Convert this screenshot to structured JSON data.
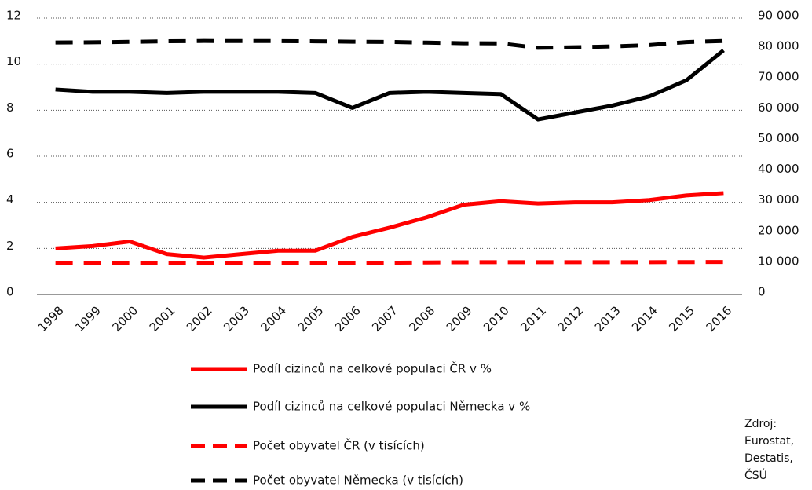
{
  "chart_data": {
    "type": "line",
    "categories": [
      "1998",
      "1999",
      "2000",
      "2001",
      "2002",
      "2003",
      "2004",
      "2005",
      "2006",
      "2007",
      "2008",
      "2009",
      "2010",
      "2011",
      "2012",
      "2013",
      "2014",
      "2015",
      "2016"
    ],
    "ylim": [
      0,
      12
    ],
    "yticks": [
      0,
      2,
      4,
      6,
      8,
      10,
      12
    ],
    "y2lim": [
      0,
      90000
    ],
    "y2ticks": [
      0,
      {
        "value": 10000,
        "label": "10 000"
      },
      {
        "value": 20000,
        "label": "20 000"
      },
      {
        "value": 30000,
        "label": "30 000"
      },
      {
        "value": 40000,
        "label": "40 000"
      },
      {
        "value": 50000,
        "label": "50 000"
      },
      {
        "value": 60000,
        "label": "60 000"
      },
      {
        "value": 70000,
        "label": "70 000"
      },
      {
        "value": 80000,
        "label": "80 000"
      },
      {
        "value": 90000,
        "label": "90 000"
      }
    ],
    "grid": true,
    "series": [
      {
        "name": "Podíl cizinců na celkové populaci ČR v %",
        "color": "#ff0000",
        "dashed": false,
        "values": [
          2.0,
          2.1,
          2.3,
          1.75,
          1.6,
          1.75,
          1.9,
          1.9,
          2.5,
          2.9,
          3.35,
          3.9,
          4.05,
          3.95,
          4.0,
          4.0,
          4.1,
          4.3,
          4.4
        ]
      },
      {
        "name": "Podíl cizinců na celkové populaci Německa v %",
        "color": "#000000",
        "dashed": false,
        "values": [
          8.9,
          8.8,
          8.8,
          8.75,
          8.8,
          8.8,
          8.8,
          8.75,
          8.1,
          8.75,
          8.8,
          8.75,
          8.7,
          7.6,
          7.9,
          8.2,
          8.6,
          9.3,
          10.6
        ]
      },
      {
        "name": "Počet obyvatel ČR (v tisících)",
        "color": "#ff0000",
        "dashed": true,
        "axis": "y2",
        "values": [
          10300,
          10290,
          10270,
          10230,
          10200,
          10200,
          10210,
          10230,
          10270,
          10320,
          10430,
          10490,
          10520,
          10500,
          10510,
          10510,
          10520,
          10550,
          10580
        ]
      },
      {
        "name": "Počet obyvatel Německa (v tisících)",
        "color": "#000000",
        "dashed": true,
        "axis": "y2",
        "values": [
          82040,
          82100,
          82260,
          82440,
          82540,
          82530,
          82500,
          82440,
          82310,
          82220,
          82000,
          81800,
          81750,
          80300,
          80500,
          80770,
          81200,
          82180,
          82520
        ]
      }
    ],
    "source": [
      "Zdroj:",
      "Eurostat,",
      "Destatis,",
      "ČSÚ"
    ]
  }
}
